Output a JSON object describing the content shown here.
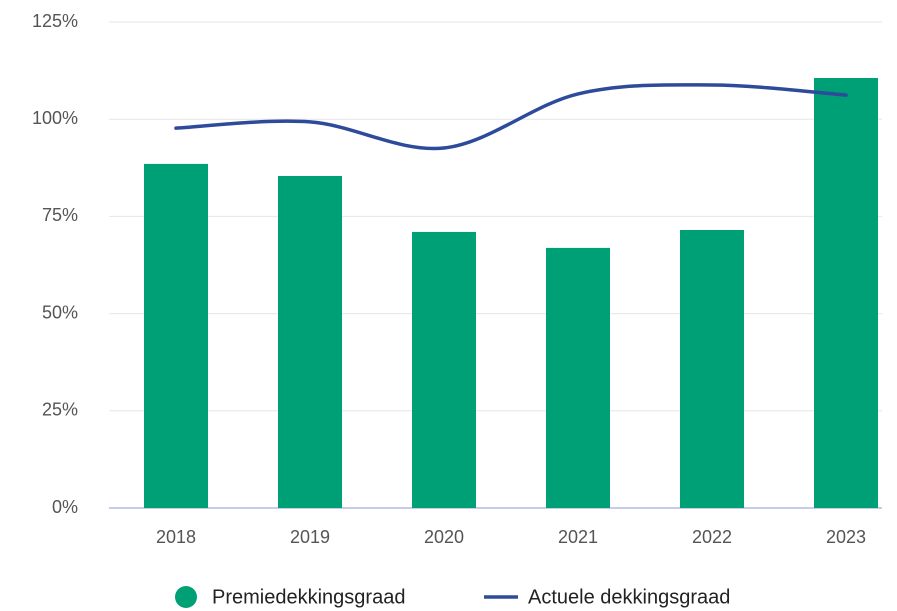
{
  "chart_data": {
    "type": "bar-line",
    "categories": [
      "2018",
      "2019",
      "2020",
      "2021",
      "2022",
      "2023"
    ],
    "series": [
      {
        "name": "Premiedekkingsgraad",
        "type": "bar",
        "color": "#00a077",
        "values": [
          88.5,
          85.4,
          71.0,
          66.9,
          71.5,
          110.6
        ]
      },
      {
        "name": "Actuele dekkingsgraad",
        "type": "line",
        "color": "#2e4a9b",
        "values": [
          97.7,
          99.3,
          92.6,
          106.5,
          108.8,
          106.2
        ]
      }
    ],
    "ylim": [
      0,
      125
    ],
    "yticks": [
      {
        "value": 0,
        "label": "0%"
      },
      {
        "value": 25,
        "label": "25%"
      },
      {
        "value": 50,
        "label": "50%"
      },
      {
        "value": 75,
        "label": "75%"
      },
      {
        "value": 100,
        "label": "100%"
      },
      {
        "value": 125,
        "label": "125%"
      }
    ],
    "grid": true,
    "legend": "bottom"
  }
}
